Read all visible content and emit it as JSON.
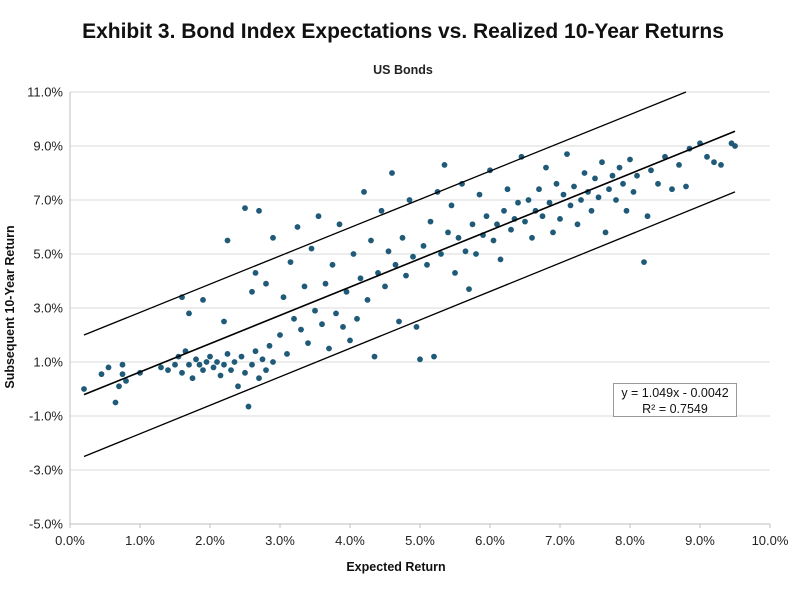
{
  "title": "Exhibit 3. Bond Index Expectations vs. Realized 10-Year Returns",
  "subtitle": "US Bonds",
  "equation": "y = 1.049x - 0.0042",
  "r_squared": "R² = 0.7549",
  "colors": {
    "points": "#1f5a78",
    "lines": "#000000",
    "grid": "#d9d9d9"
  },
  "chart_data": {
    "type": "scatter",
    "title": "Exhibit 3. Bond Index Expectations vs. Realized 10-Year Returns",
    "subtitle": "US Bonds",
    "xlabel": "Expected Return",
    "ylabel": "Subsequent 10-Year Return",
    "xlim": [
      0.0,
      10.0
    ],
    "ylim": [
      -5.0,
      11.0
    ],
    "x_ticks": [
      "0.0%",
      "1.0%",
      "2.0%",
      "3.0%",
      "4.0%",
      "5.0%",
      "6.0%",
      "7.0%",
      "8.0%",
      "9.0%",
      "10.0%"
    ],
    "y_ticks": [
      "-5.0%",
      "-3.0%",
      "-1.0%",
      "1.0%",
      "3.0%",
      "5.0%",
      "7.0%",
      "9.0%",
      "11.0%"
    ],
    "grid": "horizontal",
    "trendline": {
      "equation": "y = 1.049x - 0.0042",
      "slope": 1.049,
      "intercept": -0.42,
      "r_squared": 0.7549
    },
    "band_lines": [
      {
        "x": [
          0.2,
          8.8
        ],
        "y": [
          2.0,
          11.0
        ]
      },
      {
        "x": [
          0.2,
          9.5
        ],
        "y": [
          -2.5,
          7.3
        ]
      }
    ],
    "series": [
      {
        "points": [
          [
            0.2,
            0.0
          ],
          [
            0.45,
            0.55
          ],
          [
            0.55,
            0.8
          ],
          [
            0.65,
            -0.5
          ],
          [
            0.7,
            0.1
          ],
          [
            0.75,
            0.55
          ],
          [
            0.75,
            0.9
          ],
          [
            0.8,
            0.3
          ],
          [
            1.0,
            0.6
          ],
          [
            1.3,
            0.8
          ],
          [
            1.4,
            0.7
          ],
          [
            1.5,
            0.9
          ],
          [
            1.55,
            1.2
          ],
          [
            1.6,
            0.6
          ],
          [
            1.65,
            1.4
          ],
          [
            1.7,
            0.9
          ],
          [
            1.75,
            0.4
          ],
          [
            1.8,
            1.1
          ],
          [
            1.85,
            0.9
          ],
          [
            1.9,
            0.7
          ],
          [
            1.95,
            1.0
          ],
          [
            2.0,
            1.2
          ],
          [
            2.05,
            0.8
          ],
          [
            2.1,
            1.0
          ],
          [
            2.15,
            0.5
          ],
          [
            2.2,
            0.9
          ],
          [
            2.25,
            1.3
          ],
          [
            2.3,
            0.7
          ],
          [
            2.35,
            1.0
          ],
          [
            2.4,
            0.1
          ],
          [
            2.45,
            1.2
          ],
          [
            2.5,
            0.6
          ],
          [
            2.55,
            -0.65
          ],
          [
            2.6,
            0.9
          ],
          [
            2.65,
            1.4
          ],
          [
            2.7,
            0.4
          ],
          [
            2.75,
            1.1
          ],
          [
            2.8,
            0.7
          ],
          [
            2.85,
            1.6
          ],
          [
            2.9,
            1.0
          ],
          [
            1.6,
            3.4
          ],
          [
            1.7,
            2.8
          ],
          [
            1.9,
            3.3
          ],
          [
            2.2,
            2.5
          ],
          [
            2.25,
            5.5
          ],
          [
            2.5,
            6.7
          ],
          [
            2.6,
            3.6
          ],
          [
            2.65,
            4.3
          ],
          [
            2.7,
            6.6
          ],
          [
            2.8,
            3.9
          ],
          [
            2.9,
            5.6
          ],
          [
            3.0,
            2.0
          ],
          [
            3.05,
            3.4
          ],
          [
            3.1,
            1.3
          ],
          [
            3.15,
            4.7
          ],
          [
            3.2,
            2.6
          ],
          [
            3.25,
            6.0
          ],
          [
            3.3,
            2.2
          ],
          [
            3.35,
            3.8
          ],
          [
            3.4,
            1.7
          ],
          [
            3.45,
            5.2
          ],
          [
            3.5,
            2.9
          ],
          [
            3.55,
            6.4
          ],
          [
            3.6,
            2.4
          ],
          [
            3.65,
            3.9
          ],
          [
            3.7,
            1.5
          ],
          [
            3.75,
            4.6
          ],
          [
            3.8,
            2.8
          ],
          [
            3.85,
            6.1
          ],
          [
            3.9,
            2.3
          ],
          [
            3.95,
            3.6
          ],
          [
            4.0,
            1.8
          ],
          [
            4.05,
            5.0
          ],
          [
            4.1,
            2.6
          ],
          [
            4.15,
            4.1
          ],
          [
            4.2,
            7.3
          ],
          [
            4.25,
            3.3
          ],
          [
            4.3,
            5.5
          ],
          [
            4.35,
            1.2
          ],
          [
            4.4,
            4.3
          ],
          [
            4.45,
            6.6
          ],
          [
            4.5,
            3.8
          ],
          [
            4.55,
            5.1
          ],
          [
            4.6,
            8.0
          ],
          [
            4.65,
            4.6
          ],
          [
            4.7,
            2.5
          ],
          [
            4.75,
            5.6
          ],
          [
            4.8,
            4.2
          ],
          [
            4.85,
            7.0
          ],
          [
            4.9,
            4.9
          ],
          [
            4.95,
            2.3
          ],
          [
            5.0,
            1.1
          ],
          [
            5.05,
            5.3
          ],
          [
            5.1,
            4.6
          ],
          [
            5.15,
            6.2
          ],
          [
            5.2,
            1.2
          ],
          [
            5.25,
            7.3
          ],
          [
            5.3,
            5.0
          ],
          [
            5.35,
            8.3
          ],
          [
            5.4,
            5.8
          ],
          [
            5.45,
            6.8
          ],
          [
            5.5,
            4.3
          ],
          [
            5.55,
            5.6
          ],
          [
            5.6,
            7.6
          ],
          [
            5.65,
            5.1
          ],
          [
            5.7,
            3.7
          ],
          [
            5.75,
            6.1
          ],
          [
            5.8,
            5.0
          ],
          [
            5.85,
            7.2
          ],
          [
            5.9,
            5.7
          ],
          [
            5.95,
            6.4
          ],
          [
            6.0,
            8.1
          ],
          [
            6.05,
            5.5
          ],
          [
            6.1,
            6.1
          ],
          [
            6.15,
            4.8
          ],
          [
            6.2,
            6.6
          ],
          [
            6.25,
            7.4
          ],
          [
            6.3,
            5.9
          ],
          [
            6.35,
            6.3
          ],
          [
            6.4,
            6.9
          ],
          [
            6.45,
            8.6
          ],
          [
            6.5,
            6.2
          ],
          [
            6.55,
            7.0
          ],
          [
            6.6,
            5.6
          ],
          [
            6.65,
            6.6
          ],
          [
            6.7,
            7.4
          ],
          [
            6.75,
            6.4
          ],
          [
            6.8,
            8.2
          ],
          [
            6.85,
            6.9
          ],
          [
            6.9,
            5.8
          ],
          [
            6.95,
            7.6
          ],
          [
            7.0,
            6.3
          ],
          [
            7.05,
            7.2
          ],
          [
            7.1,
            8.7
          ],
          [
            7.15,
            6.8
          ],
          [
            7.2,
            7.5
          ],
          [
            7.25,
            6.1
          ],
          [
            7.3,
            7.0
          ],
          [
            7.35,
            8.0
          ],
          [
            7.4,
            7.3
          ],
          [
            7.45,
            6.6
          ],
          [
            7.5,
            7.8
          ],
          [
            7.55,
            7.1
          ],
          [
            7.6,
            8.4
          ],
          [
            7.65,
            5.8
          ],
          [
            7.7,
            7.4
          ],
          [
            7.75,
            7.9
          ],
          [
            7.8,
            7.0
          ],
          [
            7.85,
            8.2
          ],
          [
            7.9,
            7.6
          ],
          [
            7.95,
            6.6
          ],
          [
            8.0,
            8.5
          ],
          [
            8.05,
            7.3
          ],
          [
            8.1,
            7.9
          ],
          [
            8.2,
            4.7
          ],
          [
            8.25,
            6.4
          ],
          [
            8.3,
            8.1
          ],
          [
            8.4,
            7.6
          ],
          [
            8.5,
            8.6
          ],
          [
            8.6,
            7.4
          ],
          [
            8.7,
            8.3
          ],
          [
            8.8,
            7.5
          ],
          [
            8.85,
            8.9
          ],
          [
            9.0,
            9.1
          ],
          [
            9.1,
            8.6
          ],
          [
            9.2,
            8.4
          ],
          [
            9.3,
            8.3
          ],
          [
            9.45,
            9.1
          ],
          [
            9.5,
            9.0
          ]
        ]
      }
    ]
  }
}
